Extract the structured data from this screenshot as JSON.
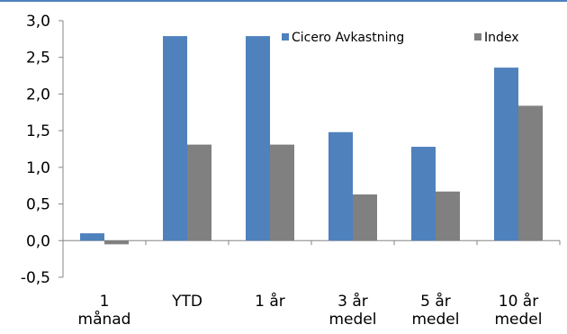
{
  "chart_data": {
    "type": "bar",
    "categories": [
      [
        "1",
        "månad"
      ],
      [
        "YTD"
      ],
      [
        "1 år"
      ],
      [
        "3 år",
        "medel"
      ],
      [
        "5 år",
        "medel"
      ],
      [
        "10 år",
        "medel"
      ]
    ],
    "series": [
      {
        "name": "Cicero Avkastning",
        "color": "#4F81BD",
        "values": [
          0.1,
          2.79,
          2.79,
          1.48,
          1.28,
          2.36
        ]
      },
      {
        "name": "Index",
        "color": "#808080",
        "values": [
          -0.05,
          1.31,
          1.31,
          0.63,
          0.67,
          1.84
        ]
      }
    ],
    "ylim": [
      -0.5,
      3.0
    ],
    "ytick_values": [
      3.0,
      2.5,
      2.0,
      1.5,
      1.0,
      0.5,
      0.0,
      -0.5
    ],
    "ytick_labels": [
      "3,0",
      "2,5",
      "2,0",
      "1,5",
      "1,0",
      "0,5",
      "0,0",
      "-0,5"
    ],
    "legend_placement": "top-right",
    "grid": false
  }
}
